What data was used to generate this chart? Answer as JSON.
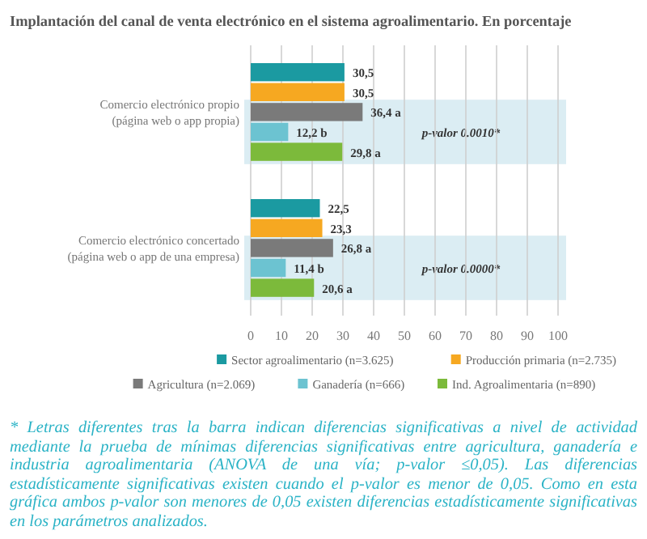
{
  "chart_data": {
    "type": "bar",
    "orientation": "horizontal",
    "title": "Implantación del canal de venta electrónico en el sistema agroalimentario. En porcentaje",
    "categories": [
      "Comercio electrónico propio\n(página web o app propia)",
      "Comercio electrónico concertado\n(página web o app de una empresa)"
    ],
    "series": [
      {
        "name": "Sector agroalimentario (n=3.625)",
        "color": "#1b9aa1",
        "values": [
          30.5,
          22.5
        ],
        "value_labels": [
          "30,5",
          "22,5"
        ]
      },
      {
        "name": "Producción primaria (n=2.735)",
        "color": "#f6a821",
        "values": [
          30.5,
          23.3
        ],
        "value_labels": [
          "30,5",
          "23,3"
        ]
      },
      {
        "name": "Agricultura (n=2.069)",
        "color": "#7a7a7a",
        "values": [
          36.4,
          26.8
        ],
        "value_labels": [
          "36,4 a",
          "26,8 a"
        ]
      },
      {
        "name": "Ganadería (n=666)",
        "color": "#6cc3d1",
        "values": [
          12.2,
          11.4
        ],
        "value_labels": [
          "12,2 b",
          "11,4 b"
        ]
      },
      {
        "name": "Ind. Agroalimentaria (n=890)",
        "color": "#7cba3b",
        "values": [
          29.8,
          20.6
        ],
        "value_labels": [
          "29,8 a",
          "20,6 a"
        ]
      }
    ],
    "xlim": [
      0,
      100
    ],
    "xticks": [
      0,
      10,
      20,
      30,
      40,
      50,
      60,
      70,
      80,
      90,
      100
    ],
    "grid": "x",
    "legend": "bottom",
    "bands": [
      {
        "axis": "y",
        "from": "Comercio electrónico propio\n(página web o app propia)",
        "to": "Comercio electrónico propio\n(página web o app propia)",
        "label": "p-valor 0.0010*",
        "color": "#dbedf3"
      },
      {
        "axis": "y",
        "from": "Comercio electrónico concertado\n(página web o app de una empresa)",
        "to": "Comercio electrónico concertado\n(página web o app de una empresa)",
        "label": "p-valor 0.0000*",
        "color": "#dbedf3"
      }
    ],
    "annotations": [
      "* Letras diferentes tras la barra indican diferencias significativas a nivel de actividad mediante la prueba de mínimas diferencias significativas entre agricultura, ganadería e industria agroalimentaria (ANOVA de una vía; p-valor ≤0,05). Las diferencias estadísticamente significativas existen cuando el p-valor es menor de 0,05. Como en esta gráfica ambos p-valor son menores de 0,05 existen diferencias estadísticamente significativas en los parámetros analizados."
    ]
  }
}
